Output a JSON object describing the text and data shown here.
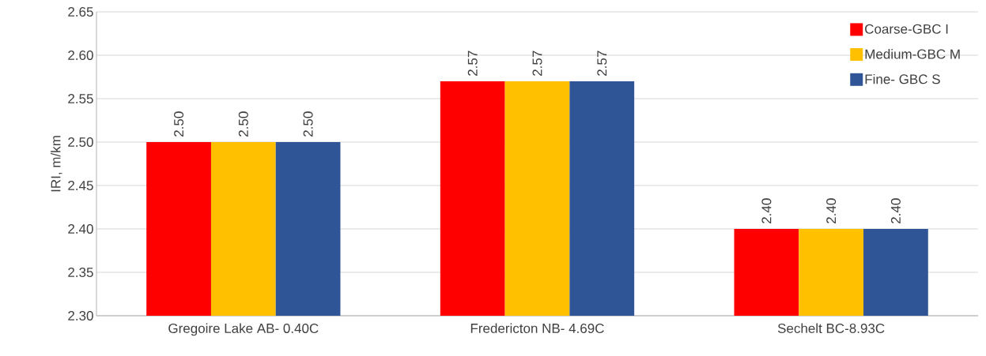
{
  "chart_data": {
    "type": "bar",
    "ylabel": "IRI, m/km",
    "categories": [
      "Gregoire Lake AB- 0.40C",
      "Fredericton NB- 4.69C",
      "Sechelt BC-8.93C"
    ],
    "series": [
      {
        "name": "Coarse-GBC I",
        "color": "#ff0000",
        "values": [
          2.5,
          2.57,
          2.4
        ],
        "value_labels": [
          "2.50",
          "2.57",
          "2.40"
        ]
      },
      {
        "name": "Medium-GBC M",
        "color": "#ffc000",
        "values": [
          2.5,
          2.57,
          2.4
        ],
        "value_labels": [
          "2.50",
          "2.57",
          "2.40"
        ]
      },
      {
        "name": "Fine- GBC S",
        "color": "#2f5597",
        "values": [
          2.5,
          2.57,
          2.4
        ],
        "value_labels": [
          "2.50",
          "2.57",
          "2.40"
        ]
      }
    ],
    "ylim": [
      2.3,
      2.65
    ],
    "yticks": [
      "2.30",
      "2.35",
      "2.40",
      "2.45",
      "2.50",
      "2.55",
      "2.60",
      "2.65"
    ],
    "grid": "y",
    "legend": "top right"
  }
}
